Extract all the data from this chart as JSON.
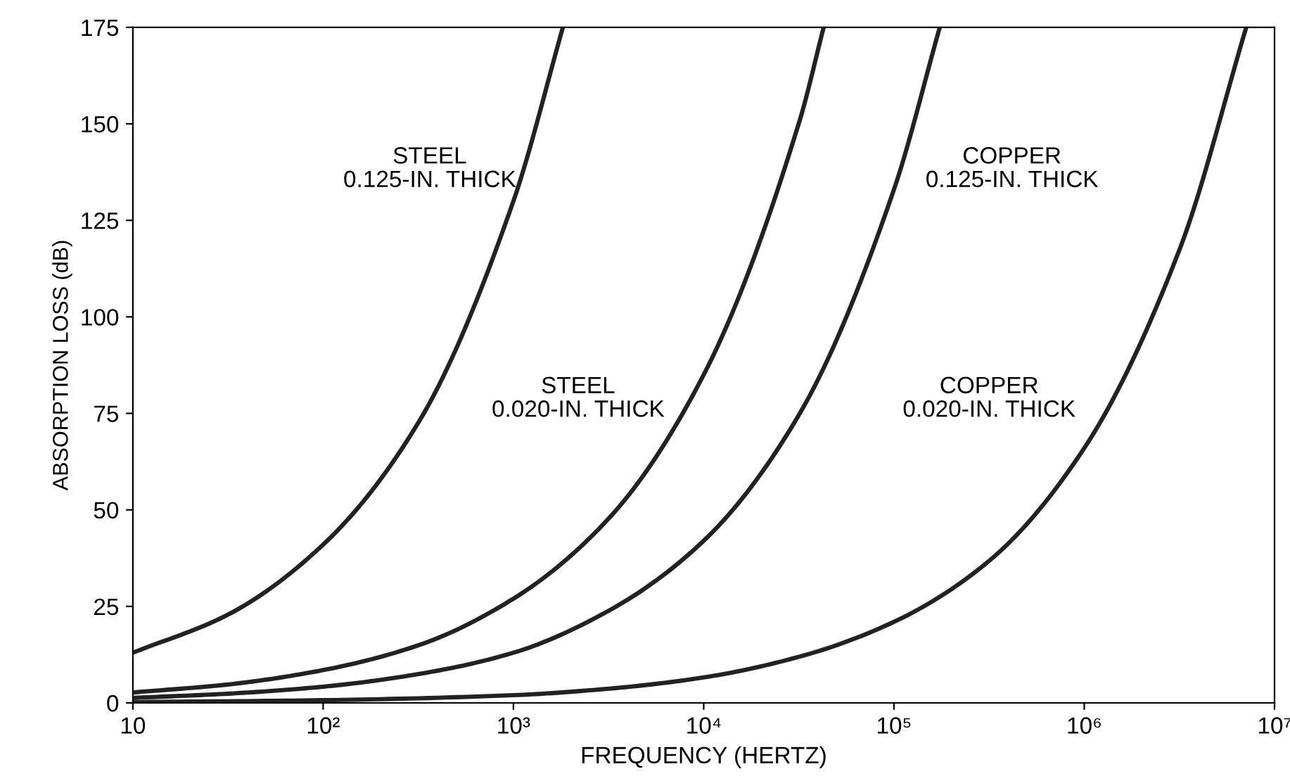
{
  "chart_data": {
    "type": "line",
    "xlabel": "FREQUENCY (HERTZ)",
    "ylabel": "ABSORPTION LOSS (dB)",
    "log": "x",
    "grid": false,
    "legend": false,
    "marker": "none",
    "line_style": "solid",
    "xlim": [
      10,
      10000000
    ],
    "ylim": [
      0,
      175
    ],
    "xticks": [
      10,
      {
        "value": 100,
        "label": "10²"
      },
      {
        "value": 1000,
        "label": "10³"
      },
      {
        "value": 10000,
        "label": "10⁴"
      },
      {
        "value": 100000,
        "label": "10⁵"
      },
      {
        "value": 1000000,
        "label": "10⁶"
      },
      {
        "value": 10000000,
        "label": "10⁷"
      }
    ],
    "yticks": [
      0,
      25,
      50,
      75,
      100,
      125,
      150,
      175
    ],
    "series": [
      {
        "color": "#222222",
        "x": [
          10,
          32,
          100,
          320,
          1000,
          1820
        ],
        "values": [
          13,
          23,
          41,
          73,
          130,
          175
        ]
      },
      {
        "color": "#222222",
        "x": [
          10,
          32,
          100,
          320,
          1000,
          3200,
          10000,
          32000,
          42700
        ],
        "values": [
          2.7,
          4.8,
          8.5,
          15,
          27,
          48,
          85,
          151,
          175
        ]
      },
      {
        "color": "#222222",
        "x": [
          10,
          32,
          100,
          320,
          1000,
          3200,
          10000,
          32000,
          100000,
          174000
        ],
        "values": [
          1.3,
          2.4,
          4.2,
          7.5,
          13,
          24,
          42,
          75,
          133,
          175
        ]
      },
      {
        "color": "#222222",
        "x": [
          10,
          100,
          1000,
          3200,
          10000,
          32000,
          100000,
          320000,
          1000000,
          3200000,
          7100000
        ],
        "values": [
          0.2,
          0.7,
          2,
          3.7,
          6.6,
          12,
          21,
          37,
          66,
          118,
          175
        ]
      }
    ],
    "annotations": [
      "STEEL\n0.125-IN. THICK",
      "STEEL\n0.020-IN. THICK",
      "COPPER\n0.125-IN. THICK",
      "COPPER\n0.020-IN. THICK"
    ]
  }
}
